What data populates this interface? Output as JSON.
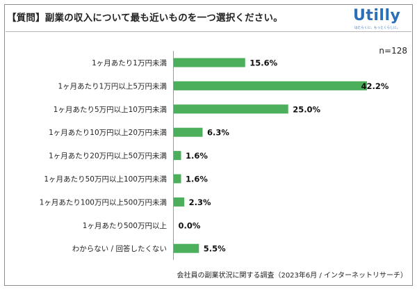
{
  "header": {
    "title": "【質問】副業の収入について最も近いものを一つ選択ください。",
    "logo_text": "Utilly",
    "logo_tagline": "はたらくに、もっとくらしに。"
  },
  "sample_size": "n=128",
  "source": "会社員の副業状況に関する調査（2023年6月 / インターネットリサーチ）",
  "colors": {
    "bar": "#4caf5b",
    "brand": "#2a6fb7"
  },
  "chart_data": {
    "type": "bar",
    "orientation": "horizontal",
    "categories": [
      "1ヶ月あたり1万円未満",
      "1ヶ月あたり1万円以上5万円未満",
      "1ヶ月あたり5万円以上10万円未満",
      "1ヶ月あたり10万円以上20万円未満",
      "1ヶ月あたり20万円以上50万円未満",
      "1ヶ月あたり50万円以上100万円未満",
      "1ヶ月あたり100万円以上500万円未満",
      "1ヶ月あたり500万円以上",
      "わからない / 回答したくない"
    ],
    "values": [
      15.6,
      42.2,
      25.0,
      6.3,
      1.6,
      1.6,
      2.3,
      0.0,
      5.5
    ],
    "labels": [
      "15.6%",
      "42.2%",
      "25.0%",
      "6.3%",
      "1.6%",
      "1.6%",
      "2.3%",
      "0.0%",
      "5.5%"
    ],
    "xlim": [
      0,
      42.2
    ],
    "grid": false,
    "legend": "none"
  }
}
